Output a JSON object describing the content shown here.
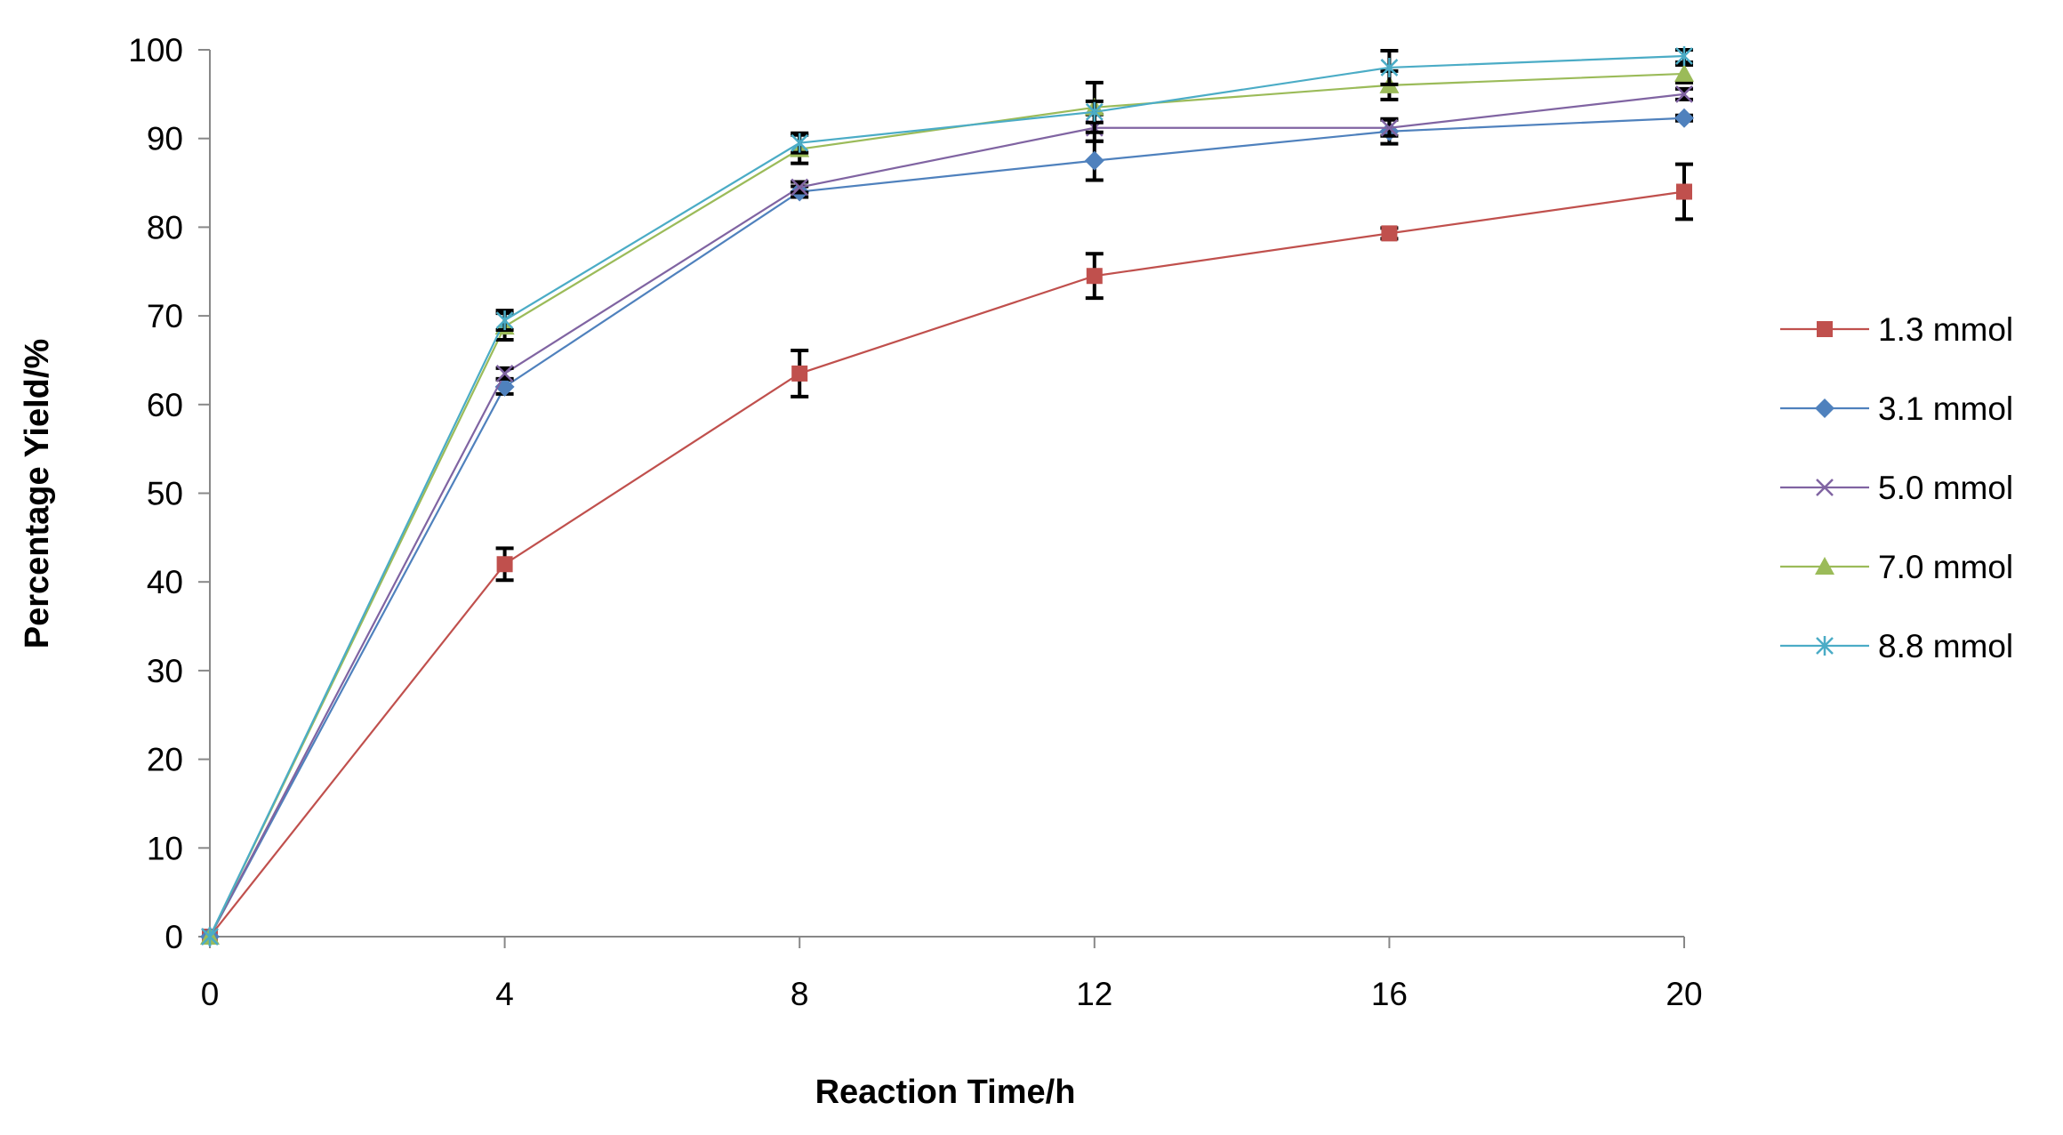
{
  "chart_data": {
    "type": "line",
    "title": "",
    "xlabel": "Reaction Time/h",
    "ylabel": "Percentage Yield/%",
    "x": [
      0,
      4,
      8,
      12,
      16,
      20
    ],
    "xticks": [
      "0",
      "4",
      "8",
      "12",
      "16",
      "20"
    ],
    "yticks": [
      "0",
      "10",
      "20",
      "30",
      "40",
      "50",
      "60",
      "70",
      "80",
      "90",
      "100"
    ],
    "xlim": [
      0,
      20
    ],
    "ylim": [
      0,
      100
    ],
    "grid": false,
    "legend_position": "right",
    "error_bars": true,
    "series": [
      {
        "name": "1.3 mmol",
        "color": "#c0504d",
        "marker": "square",
        "values": [
          0,
          42,
          63.5,
          74.5,
          79.3,
          84
        ],
        "errors": [
          0,
          1.8,
          2.6,
          2.5,
          0.6,
          3.1
        ]
      },
      {
        "name": "3.1 mmol",
        "color": "#4f81bd",
        "marker": "diamond",
        "values": [
          0,
          62,
          84,
          87.5,
          90.8,
          92.3
        ],
        "errors": [
          0,
          0.8,
          0.6,
          2.2,
          1.4,
          0.3
        ]
      },
      {
        "name": "5.0 mmol",
        "color": "#8064a2",
        "marker": "x",
        "values": [
          0,
          63.5,
          84.5,
          91.2,
          91.2,
          95
        ],
        "errors": [
          0,
          0.6,
          0.6,
          1.5,
          0.9,
          0.6
        ]
      },
      {
        "name": "7.0 mmol",
        "color": "#9bbb59",
        "marker": "triangle",
        "values": [
          0,
          68.8,
          88.8,
          93.5,
          96,
          97.3
        ],
        "errors": [
          0,
          1.5,
          1.6,
          2.8,
          1.6,
          1.0
        ]
      },
      {
        "name": "8.8 mmol",
        "color": "#4bacc6",
        "marker": "star",
        "values": [
          0,
          69.5,
          89.5,
          93,
          98,
          99.3
        ],
        "errors": [
          0,
          1.1,
          1.1,
          1.2,
          1.9,
          0.7
        ]
      }
    ]
  }
}
